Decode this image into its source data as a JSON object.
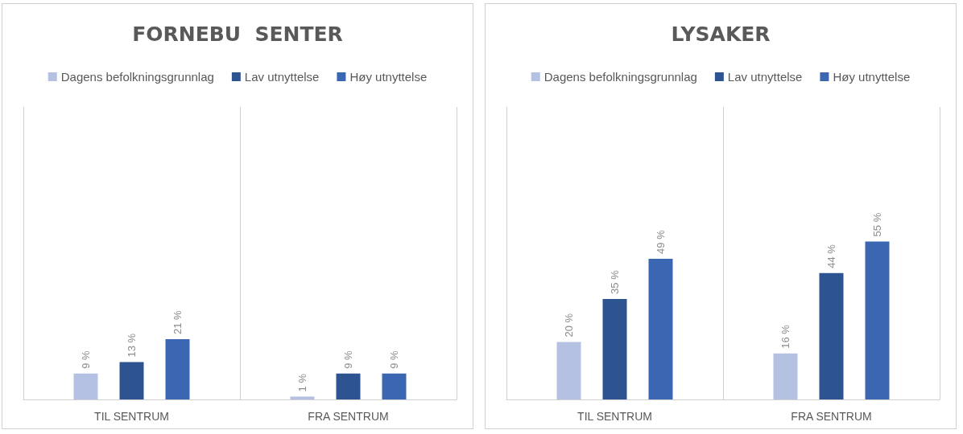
{
  "chart_data": [
    {
      "type": "bar",
      "title": "FORNEBU  SENTER",
      "categories": [
        "TIL SENTRUM",
        "FRA SENTRUM"
      ],
      "series": [
        {
          "name": "Dagens befolkningsgrunnlag",
          "color": "#b4c1e3",
          "values": [
            9,
            1
          ],
          "value_labels": [
            "9 %",
            "1 %"
          ]
        },
        {
          "name": "Lav utnyttelse",
          "color": "#2e5391",
          "values": [
            13,
            9
          ],
          "value_labels": [
            "13 %",
            "9 %"
          ]
        },
        {
          "name": "Høy utnyttelse",
          "color": "#3b66b2",
          "values": [
            21,
            9
          ],
          "value_labels": [
            "21 %",
            "9 %"
          ]
        }
      ],
      "legend": "top",
      "grid": "x"
    },
    {
      "type": "bar",
      "title": "LYSAKER",
      "categories": [
        "TIL SENTRUM",
        "FRA SENTRUM"
      ],
      "series": [
        {
          "name": "Dagens befolkningsgrunnlag",
          "color": "#b4c1e3",
          "values": [
            20,
            16
          ],
          "value_labels": [
            "20 %",
            "16 %"
          ]
        },
        {
          "name": "Lav utnyttelse",
          "color": "#2e5391",
          "values": [
            35,
            44
          ],
          "value_labels": [
            "35 %",
            "44 %"
          ]
        },
        {
          "name": "Høy utnyttelse",
          "color": "#3b66b2",
          "values": [
            49,
            55
          ],
          "value_labels": [
            "49 %",
            "55 %"
          ]
        }
      ],
      "legend": "top",
      "grid": "x"
    }
  ]
}
